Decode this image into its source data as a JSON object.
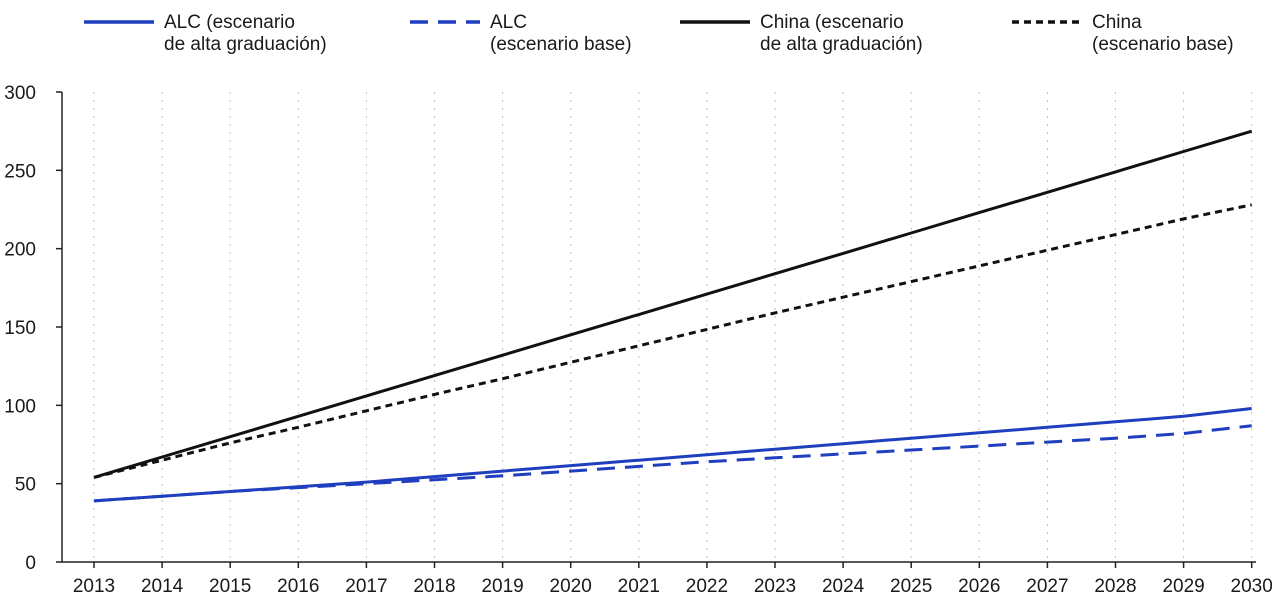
{
  "chart_data": {
    "type": "line",
    "title": "",
    "xlabel": "",
    "ylabel": "",
    "x": [
      2013,
      2014,
      2015,
      2016,
      2017,
      2018,
      2019,
      2020,
      2021,
      2022,
      2023,
      2024,
      2025,
      2026,
      2027,
      2028,
      2029,
      2030
    ],
    "ylim": [
      0,
      300
    ],
    "yticks": [
      0,
      50,
      100,
      150,
      200,
      250,
      300
    ],
    "grid": {
      "vertical": true,
      "horizontal": false
    },
    "legend_position": "top",
    "series": [
      {
        "name_lines": [
          "ALC (escenario",
          "de alta graduación)"
        ],
        "color": "#1f3fbf",
        "dash": "solid",
        "values": [
          39,
          42,
          45,
          48,
          51,
          54.5,
          58,
          61.5,
          65,
          68.5,
          72,
          75.5,
          79,
          82.5,
          86,
          89.5,
          93,
          98
        ]
      },
      {
        "name_lines": [
          "ALC",
          "(escenario base)"
        ],
        "color": "#1f3fbf",
        "dash": "dashed",
        "values": [
          39,
          42,
          45,
          47.5,
          50,
          52.5,
          55,
          58,
          61,
          64,
          66.5,
          69,
          71.5,
          74,
          76.5,
          79,
          82,
          87
        ]
      },
      {
        "name_lines": [
          "China (escenario",
          "de alta graduación)"
        ],
        "color": "#111111",
        "dash": "solid",
        "values": [
          54,
          67,
          80,
          93,
          106,
          119,
          132,
          145,
          158,
          171,
          184,
          197,
          210,
          223,
          236,
          249,
          262,
          275
        ]
      },
      {
        "name_lines": [
          "China",
          "(escenario base)"
        ],
        "color": "#111111",
        "dash": "dotted",
        "values": [
          54,
          65,
          76,
          86,
          96.5,
          107,
          117,
          127.5,
          138,
          148.5,
          159,
          169,
          179,
          189,
          199,
          209,
          219,
          228
        ]
      }
    ]
  }
}
